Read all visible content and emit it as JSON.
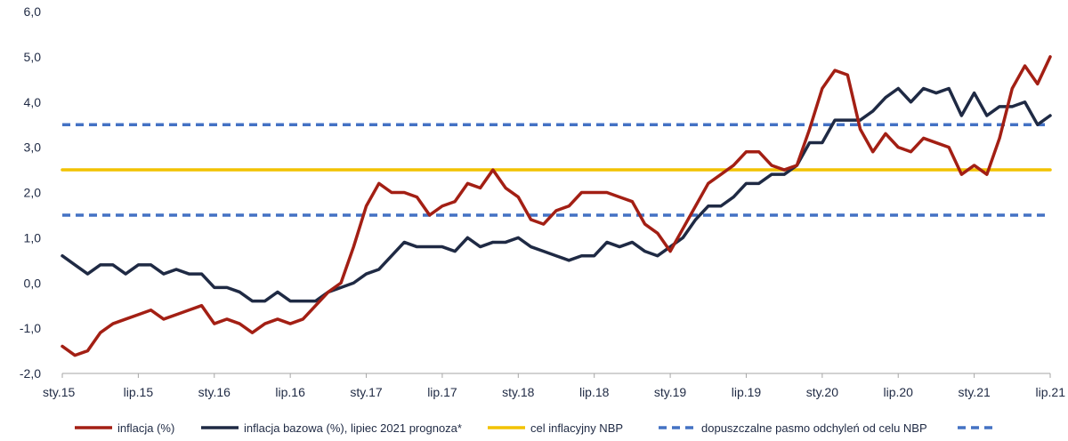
{
  "chart_data": {
    "type": "line",
    "title": "",
    "xlabel": "",
    "ylabel": "",
    "ylim": [
      -2.0,
      6.0
    ],
    "yticks": [
      -2.0,
      -1.0,
      0.0,
      1.0,
      2.0,
      3.0,
      4.0,
      5.0,
      6.0
    ],
    "ytick_labels": [
      "-2,0",
      "-1,0",
      "0,0",
      "1,0",
      "2,0",
      "3,0",
      "4,0",
      "5,0",
      "6,0"
    ],
    "x": [
      "2015-01",
      "2015-02",
      "2015-03",
      "2015-04",
      "2015-05",
      "2015-06",
      "2015-07",
      "2015-08",
      "2015-09",
      "2015-10",
      "2015-11",
      "2015-12",
      "2016-01",
      "2016-02",
      "2016-03",
      "2016-04",
      "2016-05",
      "2016-06",
      "2016-07",
      "2016-08",
      "2016-09",
      "2016-10",
      "2016-11",
      "2016-12",
      "2017-01",
      "2017-02",
      "2017-03",
      "2017-04",
      "2017-05",
      "2017-06",
      "2017-07",
      "2017-08",
      "2017-09",
      "2017-10",
      "2017-11",
      "2017-12",
      "2018-01",
      "2018-02",
      "2018-03",
      "2018-04",
      "2018-05",
      "2018-06",
      "2018-07",
      "2018-08",
      "2018-09",
      "2018-10",
      "2018-11",
      "2018-12",
      "2019-01",
      "2019-02",
      "2019-03",
      "2019-04",
      "2019-05",
      "2019-06",
      "2019-07",
      "2019-08",
      "2019-09",
      "2019-10",
      "2019-11",
      "2019-12",
      "2020-01",
      "2020-02",
      "2020-03",
      "2020-04",
      "2020-05",
      "2020-06",
      "2020-07",
      "2020-08",
      "2020-09",
      "2020-10",
      "2020-11",
      "2020-12",
      "2021-01",
      "2021-02",
      "2021-03",
      "2021-04",
      "2021-05",
      "2021-06",
      "2021-07"
    ],
    "xtick_labels": [
      {
        "label": "sty.15",
        "index": 0
      },
      {
        "label": "lip.15",
        "index": 6
      },
      {
        "label": "sty.16",
        "index": 12
      },
      {
        "label": "lip.16",
        "index": 18
      },
      {
        "label": "sty.17",
        "index": 24
      },
      {
        "label": "lip.17",
        "index": 30
      },
      {
        "label": "sty.18",
        "index": 36
      },
      {
        "label": "lip.18",
        "index": 42
      },
      {
        "label": "sty.19",
        "index": 48
      },
      {
        "label": "lip.19",
        "index": 54
      },
      {
        "label": "sty.20",
        "index": 60
      },
      {
        "label": "lip.20",
        "index": 66
      },
      {
        "label": "sty.21",
        "index": 72
      },
      {
        "label": "lip.21",
        "index": 78
      }
    ],
    "series": [
      {
        "name": "inflacja (%)",
        "color": "#a31f14",
        "style": "solid",
        "values": [
          -1.4,
          -1.6,
          -1.5,
          -1.1,
          -0.9,
          -0.8,
          -0.7,
          -0.6,
          -0.8,
          -0.7,
          -0.6,
          -0.5,
          -0.9,
          -0.8,
          -0.9,
          -1.1,
          -0.9,
          -0.8,
          -0.9,
          -0.8,
          -0.5,
          -0.2,
          0.0,
          0.8,
          1.7,
          2.2,
          2.0,
          2.0,
          1.9,
          1.5,
          1.7,
          1.8,
          2.2,
          2.1,
          2.5,
          2.1,
          1.9,
          1.4,
          1.3,
          1.6,
          1.7,
          2.0,
          2.0,
          2.0,
          1.9,
          1.8,
          1.3,
          1.1,
          0.7,
          1.2,
          1.7,
          2.2,
          2.4,
          2.6,
          2.9,
          2.9,
          2.6,
          2.5,
          2.6,
          3.4,
          4.3,
          4.7,
          4.6,
          3.4,
          2.9,
          3.3,
          3.0,
          2.9,
          3.2,
          3.1,
          3.0,
          2.4,
          2.6,
          2.4,
          3.2,
          4.3,
          4.8,
          4.4,
          5.0
        ]
      },
      {
        "name": "inflacja bazowa (%), lipiec 2021 prognoza*",
        "color": "#1f2a44",
        "style": "solid",
        "values": [
          0.6,
          0.4,
          0.2,
          0.4,
          0.4,
          0.2,
          0.4,
          0.4,
          0.2,
          0.3,
          0.2,
          0.2,
          -0.1,
          -0.1,
          -0.2,
          -0.4,
          -0.4,
          -0.2,
          -0.4,
          -0.4,
          -0.4,
          -0.2,
          -0.1,
          0.0,
          0.2,
          0.3,
          0.6,
          0.9,
          0.8,
          0.8,
          0.8,
          0.7,
          1.0,
          0.8,
          0.9,
          0.9,
          1.0,
          0.8,
          0.7,
          0.6,
          0.5,
          0.6,
          0.6,
          0.9,
          0.8,
          0.9,
          0.7,
          0.6,
          0.8,
          1.0,
          1.4,
          1.7,
          1.7,
          1.9,
          2.2,
          2.2,
          2.4,
          2.4,
          2.6,
          3.1,
          3.1,
          3.6,
          3.6,
          3.6,
          3.8,
          4.1,
          4.3,
          4.0,
          4.3,
          4.2,
          4.3,
          3.7,
          4.2,
          3.7,
          3.9,
          3.9,
          4.0,
          3.5,
          3.7
        ]
      },
      {
        "name": "cel inflacyjny NBP",
        "color": "#f2c200",
        "style": "solid",
        "constant": 2.5
      },
      {
        "name": "dopuszczalne pasmo odchyleń od celu NBP",
        "color": "#4472c4",
        "style": "dashed",
        "constant": 3.5
      },
      {
        "name": "",
        "color": "#4472c4",
        "style": "dashed",
        "constant": 1.5
      }
    ],
    "legend_position": "bottom"
  }
}
